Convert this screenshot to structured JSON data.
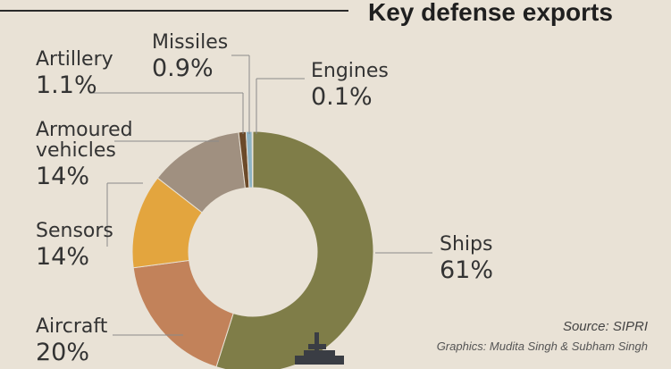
{
  "chart_data": {
    "type": "pie",
    "title": "Key defense exports",
    "categories": [
      "Ships",
      "Aircraft",
      "Sensors",
      "Armoured vehicles",
      "Artillery",
      "Missiles",
      "Engines"
    ],
    "values": [
      61,
      20,
      14,
      14,
      1.1,
      0.9,
      0.1
    ],
    "value_labels": [
      "61%",
      "20%",
      "14%",
      "14%",
      "1.1%",
      "0.9%",
      "0.1%"
    ],
    "colors": [
      "#7f7d48",
      "#c2825a",
      "#e3a53e",
      "#a09080",
      "#6b4a2a",
      "#8db3c4",
      "#456a86"
    ],
    "donut": true
  },
  "labels": {
    "ships_name": "Ships",
    "ships_value": "61%",
    "aircraft_name": "Aircraft",
    "aircraft_value": "20%",
    "sensors_name": "Sensors",
    "sensors_value": "14%",
    "armoured_name_1": "Armoured",
    "armoured_name_2": "vehicles",
    "armoured_value": "14%",
    "artillery_name": "Artillery",
    "artillery_value": "1.1%",
    "missiles_name": "Missiles",
    "missiles_value": "0.9%",
    "engines_name": "Engines",
    "engines_value": "0.1%"
  },
  "source": "Source: SIPRI",
  "credit": "Graphics: Mudita Singh & Subham Singh"
}
